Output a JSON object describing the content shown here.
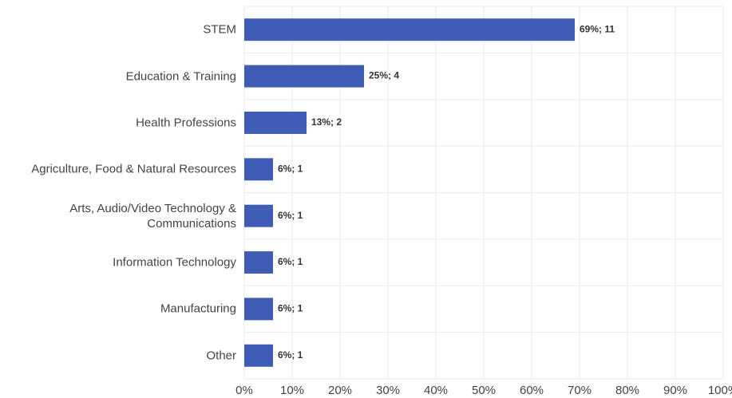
{
  "chart_data": {
    "type": "bar",
    "orientation": "horizontal",
    "categories": [
      "STEM",
      "Education & Training",
      "Health Professions",
      "Agriculture, Food & Natural Resources",
      "Arts, Audio/Video Technology & Communications",
      "Information Technology",
      "Manufacturing",
      "Other"
    ],
    "values": [
      69,
      25,
      13,
      6,
      6,
      6,
      6,
      6
    ],
    "value_labels": [
      "69%; 11",
      "25%; 4",
      "13%; 2",
      "6%; 1",
      "6%; 1",
      "6%; 1",
      "6%; 1",
      "6%; 1"
    ],
    "color": "#3f5db4",
    "xlim": [
      0,
      100
    ],
    "xticks": [
      {
        "value": 0,
        "label": "0%"
      },
      {
        "value": 10,
        "label": "10%"
      },
      {
        "value": 20,
        "label": "20%"
      },
      {
        "value": 30,
        "label": "30%"
      },
      {
        "value": 40,
        "label": "40%"
      },
      {
        "value": 50,
        "label": "50%"
      },
      {
        "value": 60,
        "label": "60%"
      },
      {
        "value": 70,
        "label": "70%"
      },
      {
        "value": 80,
        "label": "80%"
      },
      {
        "value": 90,
        "label": "90%"
      },
      {
        "value": 100,
        "label": "100%"
      }
    ],
    "grid": true
  }
}
